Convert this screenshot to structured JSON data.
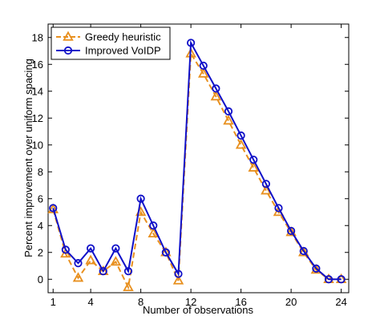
{
  "chart_data": {
    "type": "line",
    "xlabel": "Number of observations",
    "ylabel": "Percent improvement over uniform spacing",
    "xlim": [
      0.6,
      24.6
    ],
    "ylim": [
      -1,
      19
    ],
    "xticks": [
      1,
      4,
      8,
      12,
      16,
      20,
      24
    ],
    "yticks": [
      0,
      2,
      4,
      6,
      8,
      10,
      12,
      14,
      16,
      18
    ],
    "grid": false,
    "legend_position": "top-left",
    "series": [
      {
        "name": "Greedy heuristic",
        "color": "#e8901f",
        "line_style": "dashed",
        "marker": "triangle",
        "x": [
          1,
          2,
          3,
          4,
          5,
          6,
          7,
          8,
          9,
          10,
          11,
          12,
          13,
          14,
          15,
          16,
          17,
          18,
          19,
          20,
          21,
          22,
          23,
          24
        ],
        "values": [
          5.2,
          1.9,
          0.1,
          1.4,
          0.6,
          1.3,
          -0.6,
          5.0,
          3.4,
          2.0,
          -0.1,
          16.8,
          15.3,
          13.6,
          11.8,
          10.0,
          8.3,
          6.6,
          5.0,
          3.5,
          2.0,
          0.7,
          0.0,
          0.0
        ]
      },
      {
        "name": "Improved VoIDP",
        "color": "#1010c8",
        "line_style": "solid",
        "marker": "circle",
        "x": [
          1,
          2,
          3,
          4,
          5,
          6,
          7,
          8,
          9,
          10,
          11,
          12,
          13,
          14,
          15,
          16,
          17,
          18,
          19,
          20,
          21,
          22,
          23,
          24
        ],
        "values": [
          5.3,
          2.2,
          1.2,
          2.3,
          0.6,
          2.3,
          0.6,
          6.0,
          4.0,
          2.0,
          0.4,
          17.6,
          15.9,
          14.2,
          12.5,
          10.7,
          8.9,
          7.1,
          5.3,
          3.6,
          2.1,
          0.8,
          0.0,
          0.0
        ]
      }
    ]
  }
}
